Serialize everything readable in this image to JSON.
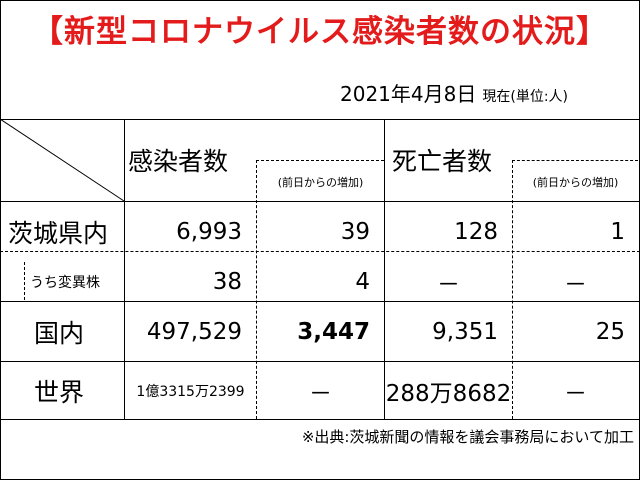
{
  "title": "【新型コロナウイルス感染者数の状況】",
  "date": "2021年4月8日",
  "date_note": "現在(単位:人)",
  "headers": {
    "infected": "感染者数",
    "infected_increase": "(前日からの増加)",
    "deaths": "死亡者数",
    "deaths_increase": "(前日からの増加)"
  },
  "rows": [
    {
      "label": "茨城県内",
      "infected": "6,993",
      "infected_increase": "39",
      "deaths": "128",
      "deaths_increase": "1"
    },
    {
      "label": "うち変異株",
      "infected": "38",
      "infected_increase": "4",
      "deaths": "－",
      "deaths_increase": "－"
    },
    {
      "label": "国内",
      "infected": "497,529",
      "infected_increase": "3,447",
      "deaths": "9,351",
      "deaths_increase": "25"
    },
    {
      "label": "世界",
      "infected": "1億3315万2399",
      "infected_increase": "－",
      "deaths": "288万8682",
      "deaths_increase": "－"
    }
  ],
  "footer": "※出典:茨城新聞の情報を議会事務局において加工"
}
